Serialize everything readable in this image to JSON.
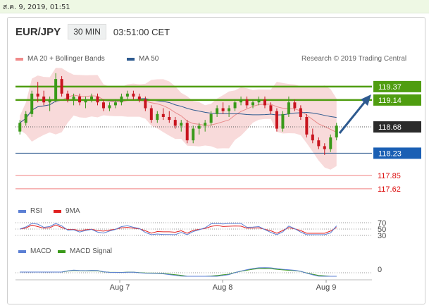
{
  "datetime": "ส.ค. 9, 2019, 01:51",
  "header": {
    "pair": "EUR/JPY",
    "timeframe": "30 MIN",
    "time": "03:51:00 CET"
  },
  "legend_main": [
    {
      "label": "MA 20 + Bollinger Bands",
      "color": "#f08a8a"
    },
    {
      "label": "MA 50",
      "color": "#2e5a8f"
    }
  ],
  "copyright": "Research © 2019 Trading Central",
  "legend_rsi": [
    {
      "label": "RSI",
      "color": "#5b7fd4"
    },
    {
      "label": "9MA",
      "color": "#e02020"
    }
  ],
  "legend_macd": [
    {
      "label": "MACD",
      "color": "#5b7fd4"
    },
    {
      "label": "MACD Signal",
      "color": "#3a9a1a"
    }
  ],
  "colors": {
    "up": "#3a9a1a",
    "down": "#c8141e",
    "resistance": "#4f9d10",
    "pivot": "#2e5a8f",
    "support": "#f07f7f",
    "current": "#2b2b2b",
    "band": "#f8dada"
  },
  "chart_data": {
    "type": "candlestick",
    "ylim": [
      117.45,
      119.67
    ],
    "x_ticks": [
      "Aug 7",
      "Aug 8",
      "Aug 9"
    ],
    "last_price": 118.68,
    "levels": [
      {
        "value": 119.37,
        "label": "119.37",
        "role": "resistance"
      },
      {
        "value": 119.14,
        "label": "119.14",
        "role": "resistance"
      },
      {
        "value": 118.68,
        "label": "118.68",
        "role": "current"
      },
      {
        "value": 118.23,
        "label": "118.23",
        "role": "pivot"
      },
      {
        "value": 117.85,
        "label": "117.85",
        "role": "support"
      },
      {
        "value": 117.62,
        "label": "117.62",
        "role": "support"
      }
    ],
    "ohlc": [
      [
        118.6,
        118.8,
        118.55,
        118.75
      ],
      [
        118.75,
        118.95,
        118.7,
        118.9
      ],
      [
        118.9,
        119.3,
        118.85,
        119.25
      ],
      [
        119.25,
        119.45,
        119.1,
        119.2
      ],
      [
        119.2,
        119.3,
        119.05,
        119.1
      ],
      [
        119.1,
        119.2,
        118.95,
        119.15
      ],
      [
        119.15,
        119.6,
        119.1,
        119.5
      ],
      [
        119.5,
        119.55,
        119.2,
        119.25
      ],
      [
        119.25,
        119.3,
        119.1,
        119.15
      ],
      [
        119.15,
        119.25,
        119.05,
        119.2
      ],
      [
        119.2,
        119.25,
        119.05,
        119.1
      ],
      [
        119.1,
        119.2,
        119.0,
        119.15
      ],
      [
        119.15,
        119.25,
        119.1,
        119.2
      ],
      [
        119.2,
        119.25,
        119.05,
        119.1
      ],
      [
        119.1,
        119.15,
        118.95,
        119.0
      ],
      [
        119.0,
        119.1,
        118.95,
        119.05
      ],
      [
        119.05,
        119.15,
        119.0,
        119.1
      ],
      [
        119.1,
        119.25,
        119.05,
        119.2
      ],
      [
        119.2,
        119.3,
        119.15,
        119.25
      ],
      [
        119.25,
        119.3,
        119.15,
        119.2
      ],
      [
        119.2,
        119.25,
        119.1,
        119.15
      ],
      [
        119.15,
        119.2,
        118.95,
        119.0
      ],
      [
        119.0,
        119.05,
        118.75,
        118.8
      ],
      [
        118.8,
        118.95,
        118.75,
        118.9
      ],
      [
        118.9,
        119.0,
        118.8,
        118.85
      ],
      [
        118.85,
        118.95,
        118.75,
        118.8
      ],
      [
        118.8,
        118.85,
        118.65,
        118.7
      ],
      [
        118.7,
        118.8,
        118.6,
        118.75
      ],
      [
        118.75,
        118.8,
        118.4,
        118.45
      ],
      [
        118.45,
        118.7,
        118.4,
        118.65
      ],
      [
        118.65,
        118.75,
        118.55,
        118.7
      ],
      [
        118.7,
        118.8,
        118.6,
        118.75
      ],
      [
        118.75,
        118.95,
        118.7,
        118.9
      ],
      [
        118.9,
        119.05,
        118.85,
        119.0
      ],
      [
        119.0,
        119.1,
        118.9,
        118.95
      ],
      [
        118.95,
        119.05,
        118.85,
        119.0
      ],
      [
        119.0,
        119.15,
        118.95,
        119.1
      ],
      [
        119.1,
        119.2,
        119.05,
        119.15
      ],
      [
        119.15,
        119.2,
        119.0,
        119.05
      ],
      [
        119.05,
        119.15,
        119.0,
        119.1
      ],
      [
        119.1,
        119.2,
        119.05,
        119.15
      ],
      [
        119.15,
        119.2,
        119.0,
        119.05
      ],
      [
        119.05,
        119.1,
        118.9,
        118.95
      ],
      [
        118.95,
        119.0,
        118.6,
        118.65
      ],
      [
        118.65,
        118.95,
        118.6,
        118.9
      ],
      [
        118.9,
        119.2,
        118.85,
        119.1
      ],
      [
        119.1,
        119.15,
        118.95,
        119.0
      ],
      [
        119.0,
        119.05,
        118.8,
        118.85
      ],
      [
        118.85,
        118.9,
        118.5,
        118.55
      ],
      [
        118.55,
        118.65,
        118.4,
        118.45
      ],
      [
        118.45,
        118.5,
        118.3,
        118.35
      ],
      [
        118.35,
        118.4,
        118.2,
        118.3
      ],
      [
        118.3,
        118.55,
        118.25,
        118.5
      ],
      [
        118.5,
        118.75,
        118.45,
        118.7
      ]
    ]
  }
}
